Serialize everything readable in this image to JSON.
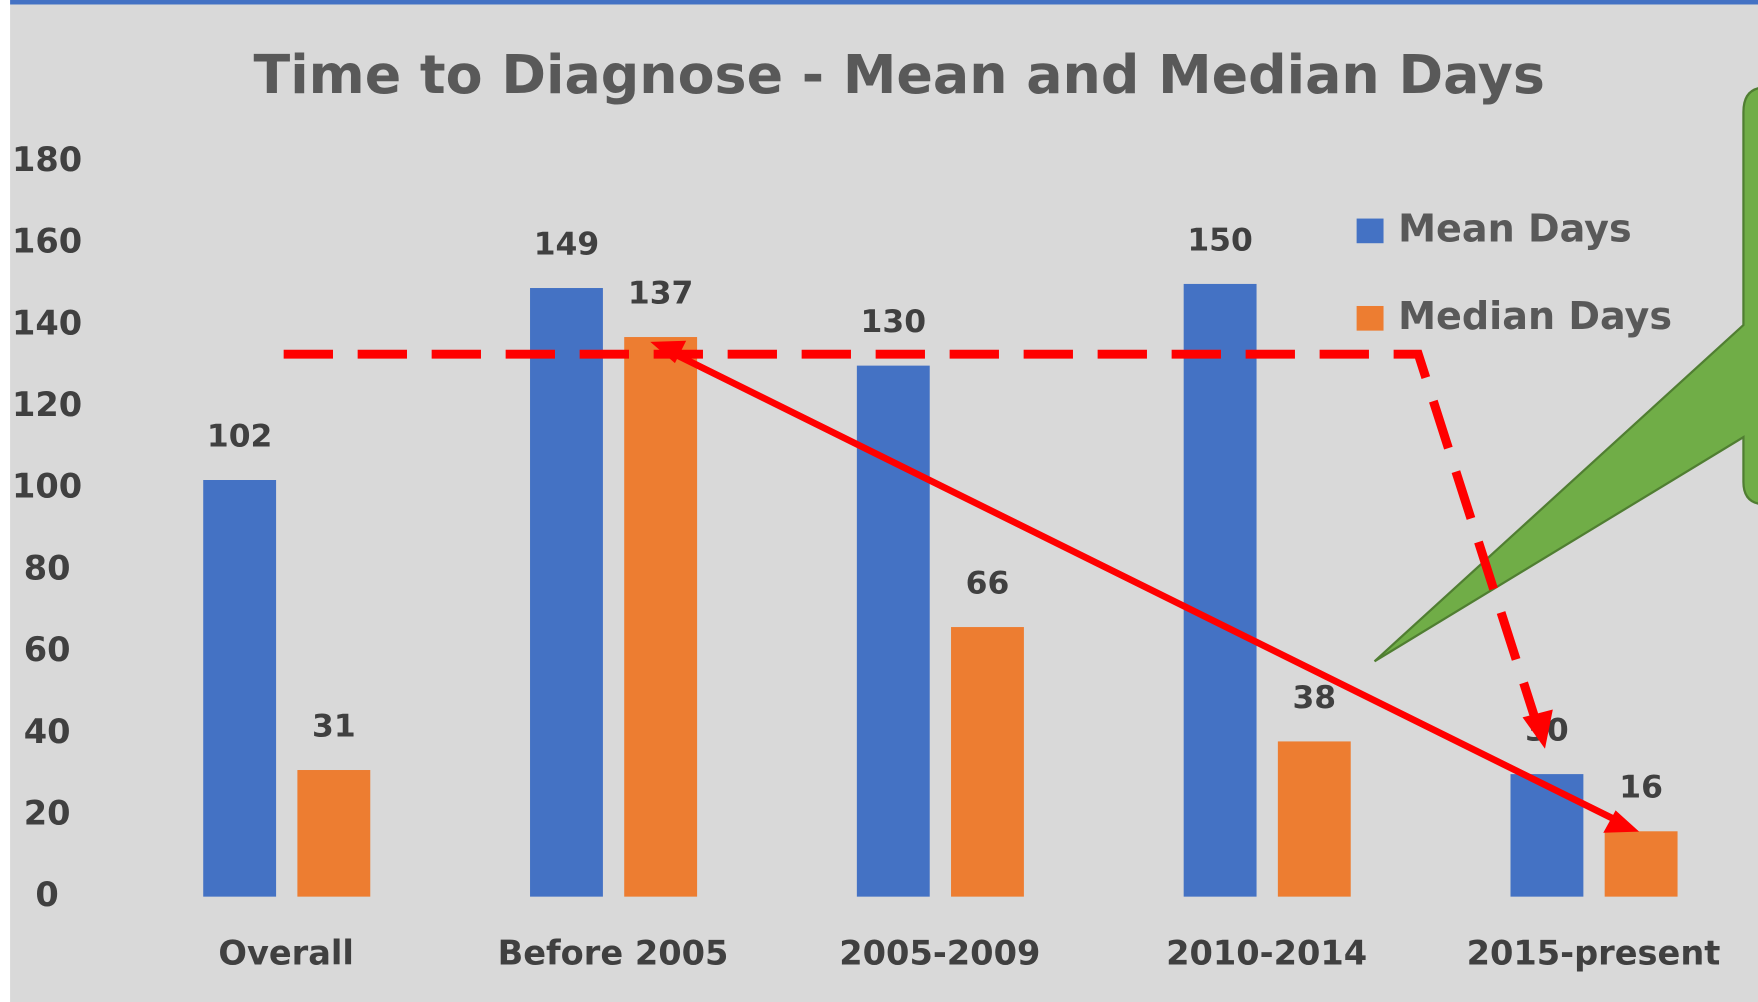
{
  "chart_data": {
    "type": "bar",
    "title": "Time to Diagnose - Mean and Median Days",
    "categories": [
      "Overall",
      "Before 2005",
      "2005-2009",
      "2010-2014",
      "2015-present"
    ],
    "series": [
      {
        "name": "Mean Days",
        "color": "#4472c4",
        "values": [
          102,
          149,
          130,
          150,
          30
        ]
      },
      {
        "name": "Median Days",
        "color": "#ed7d31",
        "values": [
          31,
          137,
          66,
          38,
          16
        ]
      }
    ],
    "ylim": [
      0,
      180
    ],
    "yticks": [
      0,
      20,
      40,
      60,
      80,
      100,
      120,
      140,
      160,
      180
    ],
    "grid": false,
    "legend": "upper right"
  }
}
